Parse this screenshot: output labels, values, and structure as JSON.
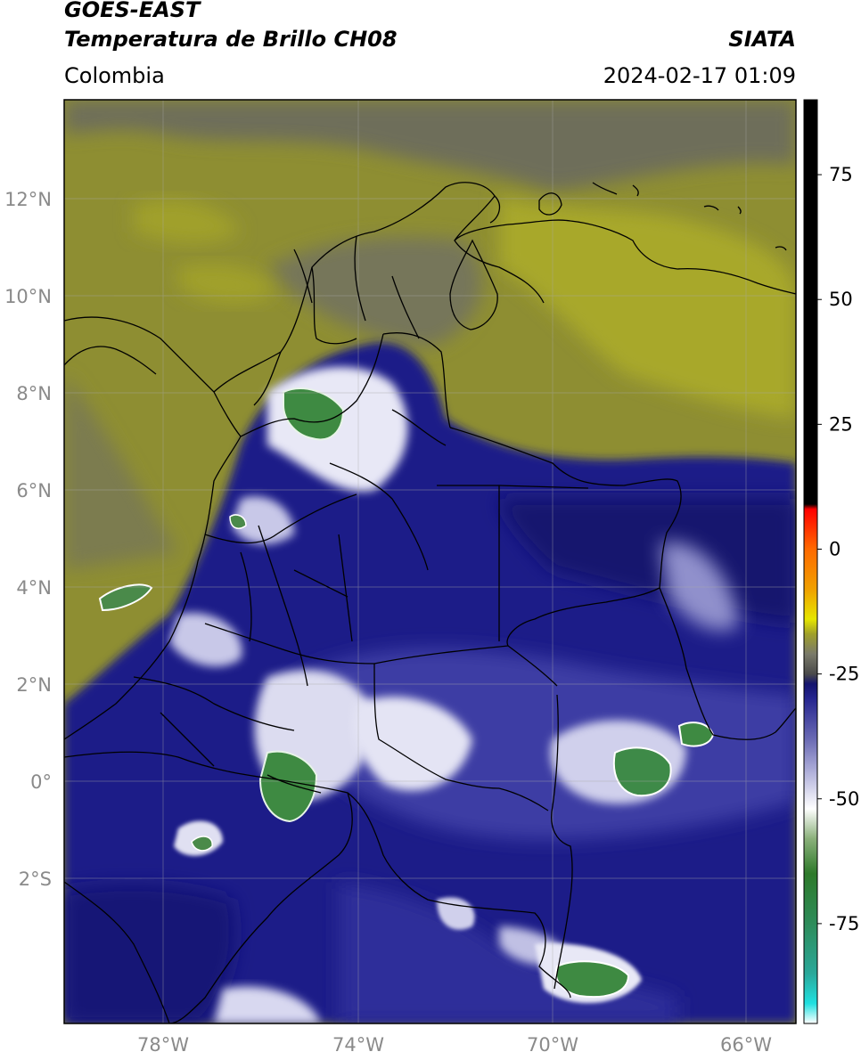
{
  "header": {
    "satellite": "GOES-EAST",
    "product": "Temperatura de Brillo CH08",
    "region": "Colombia",
    "source": "SIATA",
    "datetime": "2024-02-17 01:09"
  },
  "map": {
    "lon_range": [
      -80,
      -65
    ],
    "lat_range": [
      -5,
      14
    ],
    "lat_ticks": [
      {
        "value": 12,
        "label": "12°N"
      },
      {
        "value": 10,
        "label": "10°N"
      },
      {
        "value": 8,
        "label": "8°N"
      },
      {
        "value": 6,
        "label": "6°N"
      },
      {
        "value": 4,
        "label": "4°N"
      },
      {
        "value": 2,
        "label": "2°N"
      },
      {
        "value": 0,
        "label": "0°"
      },
      {
        "value": -2,
        "label": "2°S"
      }
    ],
    "lon_ticks": [
      {
        "value": -78,
        "label": "78°W"
      },
      {
        "value": -74,
        "label": "74°W"
      },
      {
        "value": -70,
        "label": "70°W"
      },
      {
        "value": -66,
        "label": "66°W"
      }
    ],
    "colors": {
      "warm_background": "#9a9a2e",
      "cold_cloud": "#1e1e8c",
      "very_cold_cloud": "#ffffff",
      "coldest_tops": "#3c8c46"
    }
  },
  "colorbar": {
    "range": [
      -95,
      90
    ],
    "ticks": [
      {
        "value": 75,
        "label": "75"
      },
      {
        "value": 50,
        "label": "50"
      },
      {
        "value": 25,
        "label": "25"
      },
      {
        "value": 0,
        "label": "0"
      },
      {
        "value": -25,
        "label": "-25"
      },
      {
        "value": -50,
        "label": "-50"
      },
      {
        "value": -75,
        "label": "-75"
      }
    ],
    "stops": [
      {
        "value": -95,
        "color": "#ffffff"
      },
      {
        "value": -91,
        "color": "#20e0e0"
      },
      {
        "value": -85,
        "color": "#2aa89a"
      },
      {
        "value": -75,
        "color": "#2e8c5a"
      },
      {
        "value": -65,
        "color": "#2e7a2a"
      },
      {
        "value": -58,
        "color": "#8ab07a"
      },
      {
        "value": -52,
        "color": "#ffffff"
      },
      {
        "value": -45,
        "color": "#b4b4dc"
      },
      {
        "value": -38,
        "color": "#6a6ab4"
      },
      {
        "value": -30,
        "color": "#262690"
      },
      {
        "value": -27,
        "color": "#14146e"
      },
      {
        "value": -25,
        "color": "#4a4a4a"
      },
      {
        "value": -21,
        "color": "#7a7a6a"
      },
      {
        "value": -17,
        "color": "#a0a02a"
      },
      {
        "value": -14,
        "color": "#e6e600"
      },
      {
        "value": -8,
        "color": "#f0a000"
      },
      {
        "value": 0,
        "color": "#ff6a00"
      },
      {
        "value": 8,
        "color": "#ff0000"
      },
      {
        "value": 9,
        "color": "#000000"
      },
      {
        "value": 90,
        "color": "#000000"
      }
    ]
  }
}
